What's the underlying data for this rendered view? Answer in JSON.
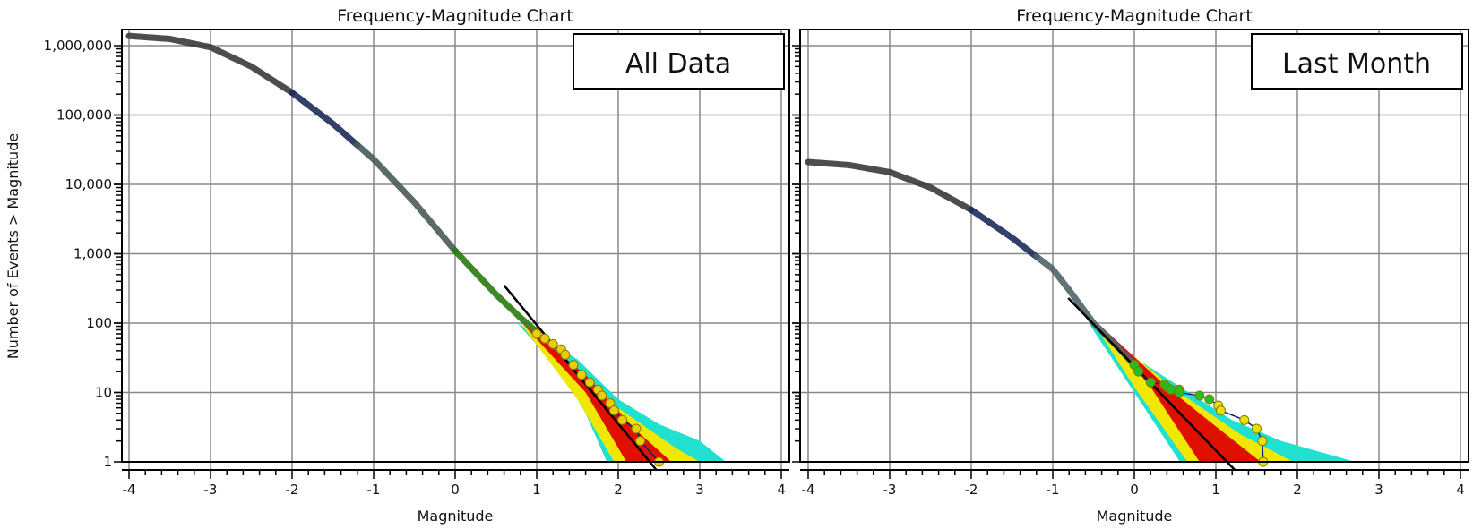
{
  "chart_data": [
    {
      "type": "line",
      "title": "Frequency-Magnitude Chart",
      "label": "All Data",
      "xlabel": "Magnitude",
      "ylabel": "Number of Events > Magnitude",
      "xlim": [
        -4,
        4
      ],
      "ylim": [
        1,
        1000000
      ],
      "yscale": "log",
      "grid": true,
      "x_ticks": [
        "-4",
        "-3",
        "-2",
        "-1",
        "0",
        "1",
        "2",
        "3",
        "4"
      ],
      "y_ticks": [
        "1",
        "10",
        "100",
        "1,000",
        "10,000",
        "100,000",
        "1,000,000"
      ],
      "cumulative_curve": [
        [
          -4,
          1380000
        ],
        [
          -3.5,
          1250000
        ],
        [
          -3,
          950000
        ],
        [
          -2.5,
          500000
        ],
        [
          -2,
          210000
        ],
        [
          -1.5,
          75000
        ],
        [
          -1,
          23000
        ],
        [
          -0.5,
          5500
        ],
        [
          0,
          1100
        ],
        [
          0.5,
          260
        ],
        [
          0.8,
          120
        ],
        [
          1.0,
          75
        ]
      ],
      "curve_segments": [
        {
          "from": -4,
          "to": -2,
          "color": "#3a3a3a"
        },
        {
          "from": -2,
          "to": -1.2,
          "color": "#1c2c5a"
        },
        {
          "from": -1.2,
          "to": 0,
          "color": "#4a5a58"
        },
        {
          "from": 0,
          "to": 1.0,
          "color": "#2a7a10"
        }
      ],
      "points": [
        [
          1.0,
          70
        ],
        [
          1.1,
          60
        ],
        [
          1.2,
          50
        ],
        [
          1.3,
          42
        ],
        [
          1.35,
          35
        ],
        [
          1.45,
          25
        ],
        [
          1.55,
          18
        ],
        [
          1.65,
          14
        ],
        [
          1.75,
          11
        ],
        [
          1.8,
          9
        ],
        [
          1.9,
          7
        ],
        [
          1.95,
          5.5
        ],
        [
          2.05,
          4
        ],
        [
          2.22,
          3
        ],
        [
          2.27,
          2
        ],
        [
          2.5,
          1
        ]
      ],
      "point_color": "#e8d000",
      "fit_line": [
        [
          0.6,
          350
        ],
        [
          2.47,
          0.76
        ]
      ],
      "simulation_envelope": {
        "cyan": [
          [
            0.76,
            100
          ],
          [
            1.5,
            30
          ],
          [
            2,
            8
          ],
          [
            2.5,
            3.5
          ],
          [
            3.0,
            2
          ],
          [
            3.32,
            1
          ],
          [
            1.86,
            1
          ],
          [
            1.6,
            5
          ],
          [
            1.3,
            20
          ]
        ],
        "yellow": [
          [
            0.8,
            100
          ],
          [
            1.5,
            22
          ],
          [
            2,
            6
          ],
          [
            2.7,
            1.6
          ],
          [
            3.0,
            1
          ],
          [
            1.95,
            1
          ],
          [
            1.5,
            8
          ]
        ],
        "red": [
          [
            0.82,
            100
          ],
          [
            1.6,
            18
          ],
          [
            2.2,
            3
          ],
          [
            2.65,
            1
          ],
          [
            2.1,
            1
          ],
          [
            1.6,
            10
          ]
        ]
      }
    },
    {
      "type": "line",
      "title": "Frequency-Magnitude Chart",
      "label": "Last Month",
      "xlabel": "Magnitude",
      "xlim": [
        -4,
        4
      ],
      "ylim": [
        1,
        1000000
      ],
      "yscale": "log",
      "grid": true,
      "x_ticks": [
        "-4",
        "-3",
        "-2",
        "-1",
        "0",
        "1",
        "2",
        "3",
        "4"
      ],
      "cumulative_curve": [
        [
          -4,
          21000
        ],
        [
          -3.5,
          19000
        ],
        [
          -3,
          15000
        ],
        [
          -2.5,
          9000
        ],
        [
          -2,
          4300
        ],
        [
          -1.5,
          1700
        ],
        [
          -1,
          600
        ],
        [
          -0.8,
          300
        ],
        [
          -0.5,
          100
        ],
        [
          -0.2,
          45
        ],
        [
          0,
          25
        ]
      ],
      "curve_segments": [
        {
          "from": -4,
          "to": -2,
          "color": "#3a3a3a"
        },
        {
          "from": -2,
          "to": -1.2,
          "color": "#1c2c5a"
        },
        {
          "from": -1.2,
          "to": 0,
          "color": "#4f6468"
        }
      ],
      "points": [
        [
          0,
          25
        ],
        [
          0.05,
          20
        ],
        [
          0.2,
          14
        ],
        [
          0.37,
          13
        ],
        [
          0.4,
          12
        ],
        [
          0.45,
          11
        ],
        [
          0.55,
          11
        ],
        [
          0.55,
          10
        ],
        [
          0.8,
          9
        ],
        [
          0.92,
          8
        ],
        [
          1.03,
          6.5
        ],
        [
          1.06,
          5.5
        ],
        [
          1.35,
          4
        ],
        [
          1.5,
          3
        ],
        [
          1.57,
          2
        ],
        [
          1.58,
          1
        ]
      ],
      "point_colors": {
        "below_1": "#22c020",
        "above_1": "#e8e000"
      },
      "fit_line": [
        [
          -0.81,
          230
        ],
        [
          1.23,
          0.77
        ]
      ],
      "simulation_envelope": {
        "cyan": [
          [
            -0.56,
            100
          ],
          [
            0,
            32
          ],
          [
            0.7,
            9.5
          ],
          [
            1.2,
            4
          ],
          [
            1.8,
            2
          ],
          [
            2.71,
            1
          ],
          [
            0.56,
            1
          ],
          [
            0,
            10
          ]
        ],
        "yellow": [
          [
            -0.5,
            100
          ],
          [
            0.5,
            11
          ],
          [
            1.3,
            2.5
          ],
          [
            1.95,
            1
          ],
          [
            0.65,
            1
          ],
          [
            0,
            12
          ]
        ],
        "red": [
          [
            -0.45,
            100
          ],
          [
            0.4,
            12
          ],
          [
            0.8,
            5
          ],
          [
            1.55,
            1
          ],
          [
            0.8,
            1
          ],
          [
            0.2,
            12
          ]
        ]
      }
    }
  ]
}
